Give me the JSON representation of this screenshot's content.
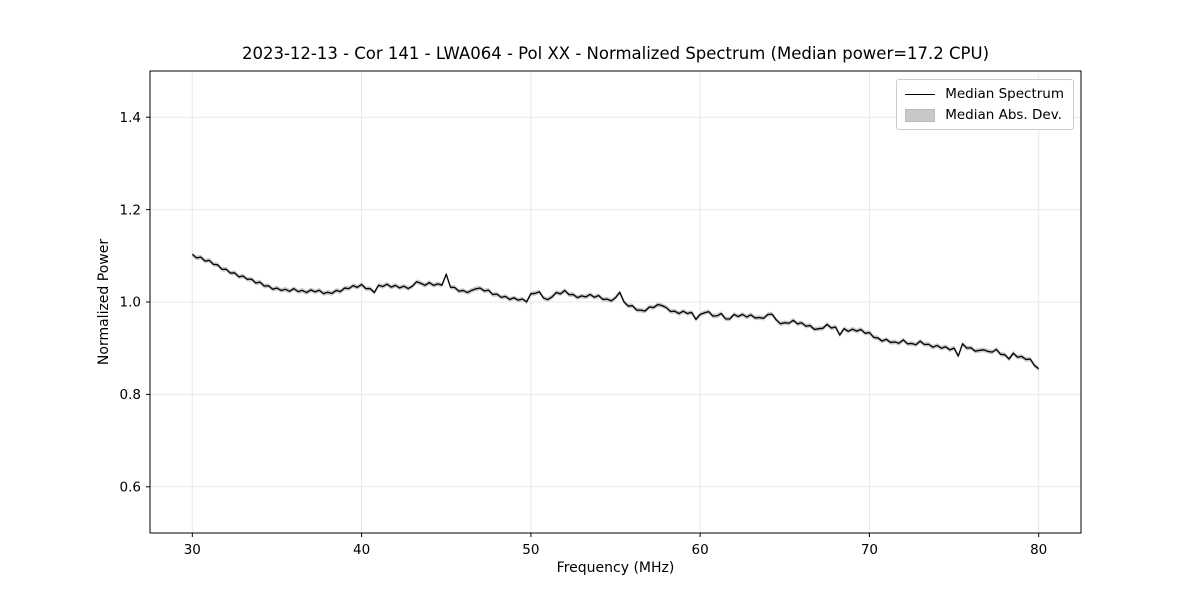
{
  "figure": {
    "title": "2023-12-13 - Cor 141 - LWA064 - Pol XX - Normalized Spectrum (Median power=17.2 CPU)",
    "xlabel": "Frequency (MHz)",
    "ylabel": "Normalized Power",
    "background_color": "#ffffff"
  },
  "legend": {
    "position": "upper right",
    "items": [
      {
        "label": "Median Spectrum",
        "swatch": "line",
        "color": "#000000"
      },
      {
        "label": "Median Abs. Dev.",
        "swatch": "patch",
        "color": "#c8c8c8"
      }
    ]
  },
  "chart_data": {
    "type": "line",
    "title": "2023-12-13 - Cor 141 - LWA064 - Pol XX - Normalized Spectrum (Median power=17.2 CPU)",
    "xlabel": "Frequency (MHz)",
    "ylabel": "Normalized Power",
    "xlim": [
      27.5,
      82.5
    ],
    "ylim": [
      0.5,
      1.5
    ],
    "xticks": [
      30,
      40,
      50,
      60,
      70,
      80
    ],
    "xtick_labels": [
      "30",
      "40",
      "50",
      "60",
      "70",
      "80"
    ],
    "yticks": [
      0.6,
      0.8,
      1.0,
      1.2,
      1.4
    ],
    "ytick_labels": [
      "0.6",
      "0.8",
      "1.0",
      "1.2",
      "1.4"
    ],
    "grid": true,
    "grid_color": "#e7e7e7",
    "line_color": "#000000",
    "band_color": "#c8c8c8",
    "legend_position": "upper right",
    "series": [
      {
        "name": "Median Spectrum",
        "x_start": 30.0,
        "x_step": 0.25,
        "values": [
          1.103,
          1.0955,
          1.0972,
          1.0885,
          1.0902,
          1.0815,
          1.0805,
          1.0707,
          1.071,
          1.0625,
          1.0632,
          1.0545,
          1.0562,
          1.049,
          1.0495,
          1.0412,
          1.043,
          1.0345,
          1.0352,
          1.0275,
          1.0302,
          1.025,
          1.0275,
          1.0232,
          1.029,
          1.0225,
          1.0252,
          1.0205,
          1.0262,
          1.022,
          1.0255,
          1.0182,
          1.021,
          1.0185,
          1.0252,
          1.0225,
          1.0302,
          1.029,
          1.0355,
          1.0317,
          1.038,
          1.029,
          1.0292,
          1.0205,
          1.0362,
          1.0335,
          1.0385,
          1.0322,
          1.036,
          1.0305,
          1.0342,
          1.029,
          1.0342,
          1.044,
          1.0405,
          1.0362,
          1.042,
          1.036,
          1.0392,
          1.0365,
          1.0602,
          1.032,
          1.0315,
          1.0232,
          1.025,
          1.0205,
          1.0252,
          1.0285,
          1.0302,
          1.024,
          1.0255,
          1.0162,
          1.017,
          1.01,
          1.0122,
          1.0055,
          1.0092,
          1.004,
          1.0065,
          1.0002,
          1.018,
          1.0185,
          1.0222,
          1.0085,
          1.0052,
          1.011,
          1.0205,
          1.0177,
          1.025,
          1.016,
          1.0162,
          1.0095,
          1.0132,
          1.011,
          1.0165,
          1.0102,
          1.014,
          1.0055,
          1.0062,
          1.0025,
          1.0092,
          1.021,
          1.0005,
          0.9912,
          0.992,
          0.9825,
          0.9822,
          0.9805,
          0.9892,
          0.988,
          0.9945,
          0.9922,
          0.988,
          0.9795,
          0.9802,
          0.975,
          0.9802,
          0.975,
          0.9775,
          0.9622,
          0.973,
          0.9765,
          0.9792,
          0.9695,
          0.9702,
          0.975,
          0.9635,
          0.9632,
          0.973,
          0.9685,
          0.9732,
          0.9675,
          0.9722,
          0.9655,
          0.9665,
          0.9647,
          0.973,
          0.9735,
          0.9612,
          0.953,
          0.9552,
          0.954,
          0.9605,
          0.9527,
          0.955,
          0.9475,
          0.9492,
          0.9405,
          0.9422,
          0.943,
          0.9515,
          0.9437,
          0.946,
          0.9285,
          0.9422,
          0.9365,
          0.9412,
          0.937,
          0.9405,
          0.9322,
          0.934,
          0.9235,
          0.9222,
          0.9155,
          0.9192,
          0.9125,
          0.9135,
          0.9107,
          0.918,
          0.9095,
          0.9102,
          0.9075,
          0.9152,
          0.908,
          0.9085,
          0.9022,
          0.906,
          0.9,
          0.9032,
          0.8965,
          0.9002,
          0.883,
          0.9095,
          0.9002,
          0.901,
          0.8935,
          0.8952,
          0.8965,
          0.8932,
          0.8915,
          0.8975,
          0.8867,
          0.886,
          0.8765,
          0.8892,
          0.8805,
          0.8822,
          0.8755,
          0.8765,
          0.8627,
          0.8555
        ]
      },
      {
        "name": "Median Abs. Dev.",
        "band_halfwidth": 0.005
      }
    ]
  }
}
